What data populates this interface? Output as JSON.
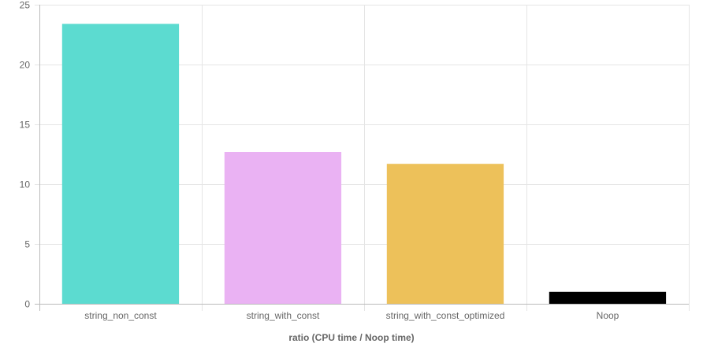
{
  "chart_data": {
    "type": "bar",
    "xlabel": "ratio (CPU time / Noop time)",
    "ylabel": "",
    "ylim": [
      0,
      25
    ],
    "yticks": [
      0,
      5,
      10,
      15,
      20,
      25
    ],
    "categories": [
      "string_non_const",
      "string_with_const",
      "string_with_const_optimized",
      "Noop"
    ],
    "values": [
      23.4,
      12.7,
      11.7,
      1.0
    ],
    "colors": [
      "#5cdbd0",
      "#eab2f3",
      "#edc15a",
      "#000000"
    ],
    "grid": true,
    "legend": "none"
  }
}
